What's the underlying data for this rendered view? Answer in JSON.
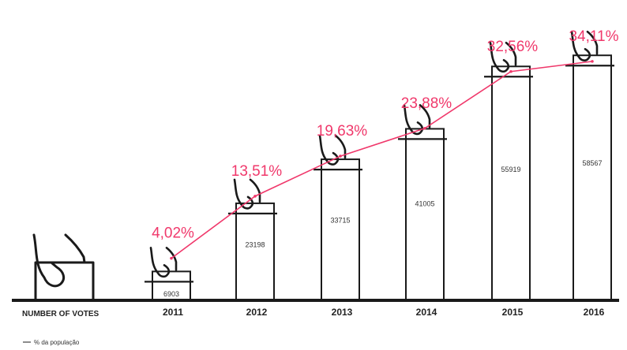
{
  "chart_data": {
    "type": "bar",
    "categories": [
      "2011",
      "2012",
      "2013",
      "2014",
      "2015",
      "2016"
    ],
    "series": [
      {
        "values": [
          6903,
          23198,
          33715,
          41005,
          55919,
          58567
        ]
      },
      {
        "name": "% da população",
        "type": "line",
        "values": [
          4.02,
          13.51,
          19.63,
          23.88,
          32.56,
          34.11
        ]
      }
    ],
    "bar_labels": [
      "6903",
      "23198",
      "33715",
      "41005",
      "55919",
      "58567"
    ],
    "line_labels": [
      "4,02%",
      "13,51%",
      "19,63%",
      "23,88%",
      "32,56%",
      "34,11%"
    ],
    "xlabel": "NUMBER OF VOTES",
    "ylim": [
      0,
      62000
    ],
    "grid": false,
    "legend_position": "bottom-left",
    "colors": {
      "bars": "#1a1a1a",
      "line": "#f0386b",
      "labels": "#f0386b",
      "text": "#222222"
    }
  }
}
